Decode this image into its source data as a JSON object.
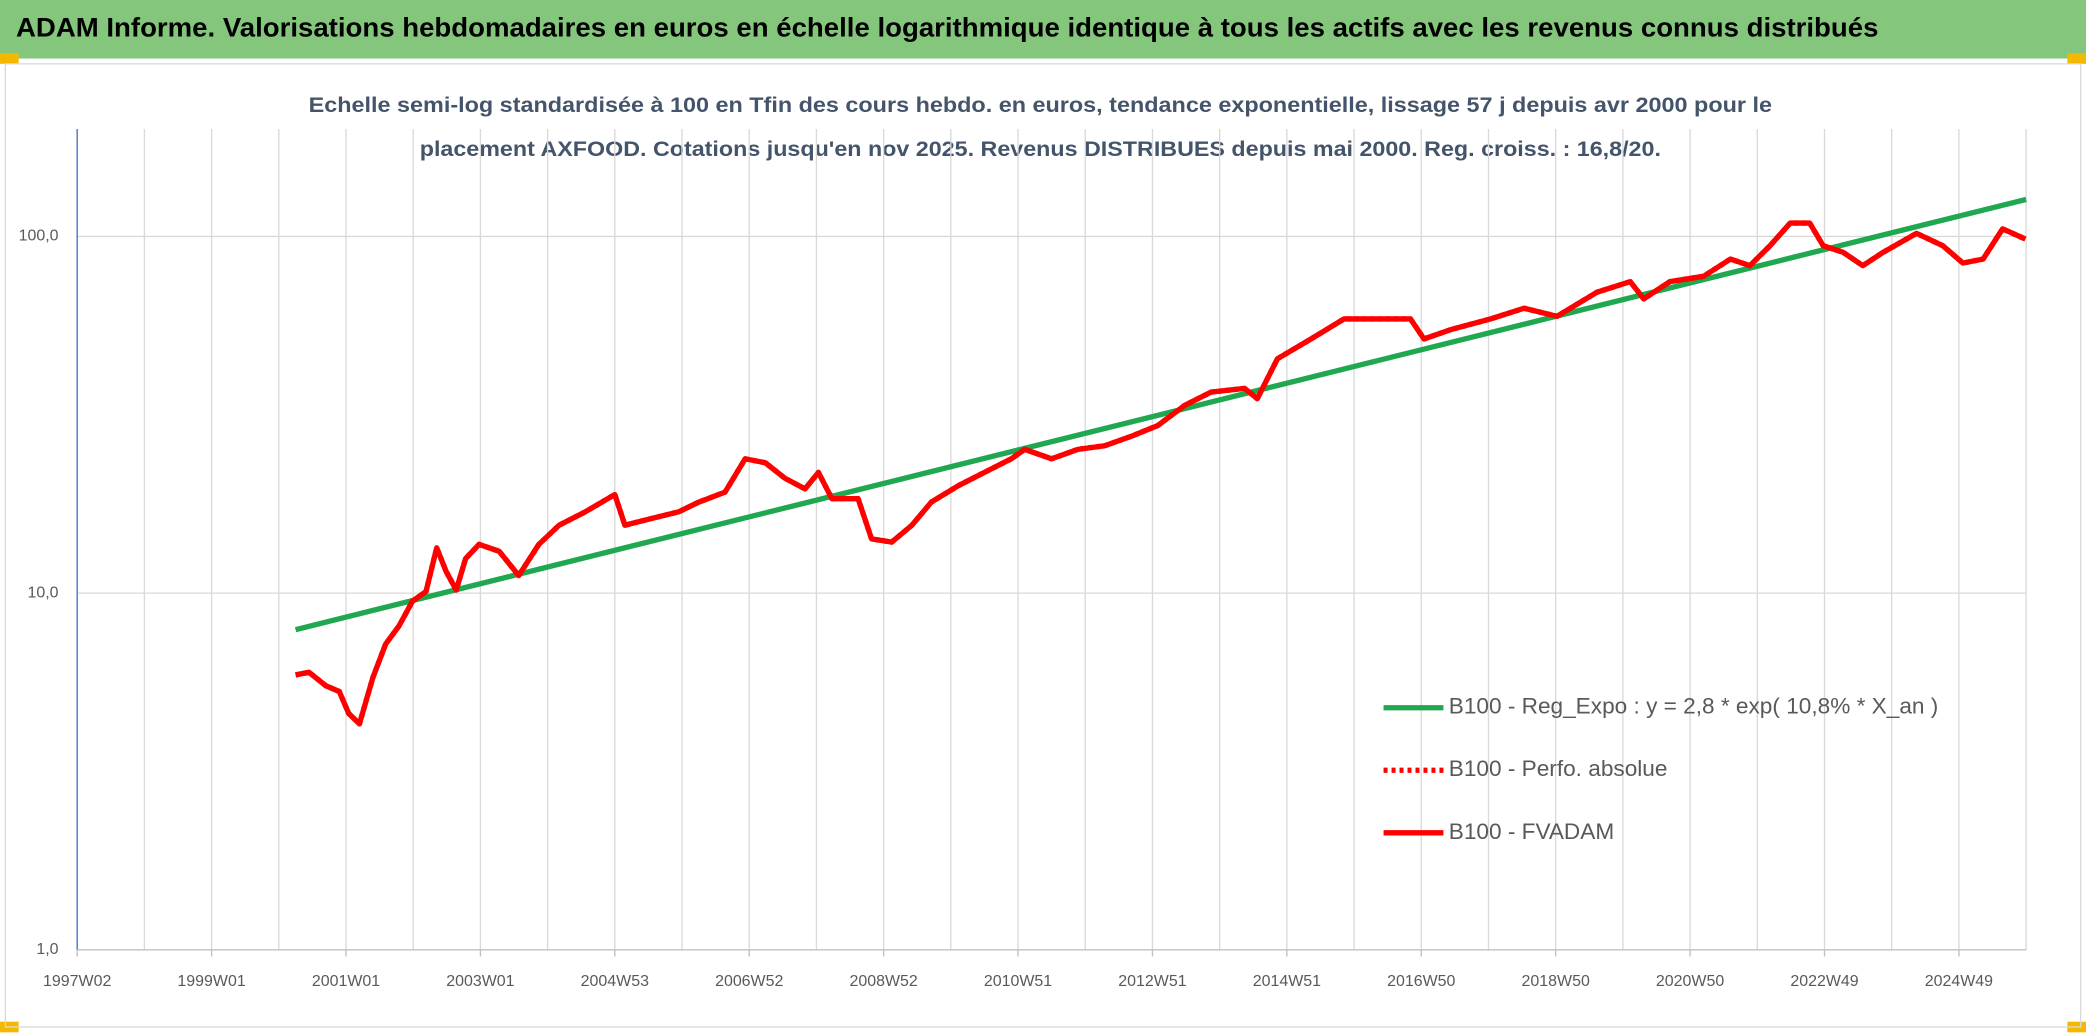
{
  "page_title": "ADAM Informe. Valorisations hebdomadaires en euros en échelle logarithmique identique à tous les actifs avec les revenus connus distribués",
  "chart_data": {
    "type": "line",
    "subtitle": [
      "Echelle semi-log standardisée à 100 en Tfin des cours hebdo. en euros, tendance exponentielle, lissage 57 j depuis avr 2000 pour le",
      "placement AXFOOD. Cotations jusqu'en nov 2025. Revenus DISTRIBUES depuis mai 2000. Reg. croiss. : 16,8/20."
    ],
    "log_y": true,
    "grid": true,
    "x_grid_step": 1,
    "legend": "lower right",
    "xlim": [
      1997,
      2026
    ],
    "xticks": [
      {
        "value": 1997,
        "label": "1997W02"
      },
      {
        "value": 1999,
        "label": "1999W01"
      },
      {
        "value": 2001,
        "label": "2001W01"
      },
      {
        "value": 2003,
        "label": "2003W01"
      },
      {
        "value": 2005,
        "label": "2004W53"
      },
      {
        "value": 2007,
        "label": "2006W52"
      },
      {
        "value": 2009,
        "label": "2008W52"
      },
      {
        "value": 2011,
        "label": "2010W51"
      },
      {
        "value": 2013,
        "label": "2012W51"
      },
      {
        "value": 2015,
        "label": "2014W51"
      },
      {
        "value": 2017,
        "label": "2016W50"
      },
      {
        "value": 2019,
        "label": "2018W50"
      },
      {
        "value": 2021,
        "label": "2020W50"
      },
      {
        "value": 2023,
        "label": "2022W49"
      },
      {
        "value": 2025,
        "label": "2024W49"
      }
    ],
    "ylim": [
      1,
      200
    ],
    "yticks": [
      {
        "value": 1,
        "label": "1,0"
      },
      {
        "value": 10,
        "label": "10,0"
      },
      {
        "value": 100,
        "label": "100,0"
      }
    ],
    "series": [
      {
        "name": "B100 - Reg_Expo : y = 2,8 * exp( 10,8% *  X_an )",
        "color": "#1fa84f",
        "style": "solid",
        "x": [
          2000.25,
          2026
        ],
        "values": [
          7.9,
          127
        ]
      },
      {
        "name": "B100 - Perfo. absolue",
        "color": "#ff0000",
        "style": "dotted",
        "x": [
          2000.25,
          2000.45,
          2000.7,
          2000.9,
          2001.04,
          2001.2,
          2001.4,
          2001.59,
          2001.79,
          2001.99,
          2002.19,
          2002.35,
          2002.49,
          2002.64,
          2002.78,
          2002.98,
          2003.28,
          2003.57,
          2003.87,
          2004.17,
          2004.56,
          2005.0,
          2005.15,
          2005.55,
          2005.95,
          2006.25,
          2006.64,
          2006.94,
          2007.24,
          2007.53,
          2007.83,
          2008.03,
          2008.23,
          2008.62,
          2008.82,
          2009.12,
          2009.42,
          2009.71,
          2010.11,
          2010.5,
          2010.9,
          2011.1,
          2011.5,
          2011.89,
          2012.29,
          2012.68,
          2013.08,
          2013.48,
          2013.87,
          2014.37,
          2014.56,
          2014.86,
          2015.36,
          2015.85,
          2016.45,
          2016.84,
          2017.04,
          2017.44,
          2018.03,
          2018.53,
          2019.02,
          2019.61,
          2020.11,
          2020.31,
          2020.7,
          2021.2,
          2021.6,
          2021.89,
          2022.19,
          2022.49,
          2022.78,
          2022.98,
          2023.28,
          2023.57,
          2023.87,
          2024.37,
          2024.76,
          2025.06,
          2025.36,
          2025.65,
          2025.99
        ],
        "values": [
          5.9,
          6.0,
          5.5,
          5.3,
          4.6,
          4.3,
          5.8,
          7.2,
          8.1,
          9.5,
          10.1,
          13.4,
          11.5,
          10.2,
          12.5,
          13.7,
          13.1,
          11.2,
          13.7,
          15.5,
          16.9,
          18.9,
          15.5,
          16.2,
          16.9,
          18.0,
          19.2,
          23.8,
          23.2,
          21.0,
          19.6,
          21.8,
          18.4,
          18.4,
          14.2,
          13.9,
          15.5,
          18.0,
          20.0,
          21.8,
          23.8,
          25.3,
          23.8,
          25.3,
          25.9,
          27.5,
          29.5,
          33.6,
          36.6,
          37.5,
          35.1,
          45.4,
          51.6,
          58.7,
          58.7,
          58.7,
          51.6,
          54.8,
          58.7,
          62.9,
          59.7,
          69.7,
          74.7,
          66.8,
          74.7,
          77.3,
          86.4,
          82.8,
          94.2,
          109,
          109,
          94.2,
          90.2,
          82.8,
          90.2,
          102,
          94.2,
          84.2,
          86.4,
          105,
          98.3
        ]
      },
      {
        "name": "B100 - FVADAM",
        "color": "#ff0000",
        "style": "solid",
        "x": [
          2000.25,
          2000.45,
          2000.7,
          2000.9,
          2001.04,
          2001.2,
          2001.4,
          2001.59,
          2001.79,
          2001.99,
          2002.19,
          2002.35,
          2002.49,
          2002.64,
          2002.78,
          2002.98,
          2003.28,
          2003.57,
          2003.87,
          2004.17,
          2004.56,
          2005.0,
          2005.15,
          2005.55,
          2005.95,
          2006.25,
          2006.64,
          2006.94,
          2007.24,
          2007.53,
          2007.83,
          2008.03,
          2008.23,
          2008.62,
          2008.82,
          2009.12,
          2009.42,
          2009.71,
          2010.11,
          2010.5,
          2010.9,
          2011.1,
          2011.5,
          2011.89,
          2012.29,
          2012.68,
          2013.08,
          2013.48,
          2013.87,
          2014.37,
          2014.56,
          2014.86,
          2015.36,
          2015.85,
          2016.45,
          2016.84,
          2017.04,
          2017.44,
          2018.03,
          2018.53,
          2019.02,
          2019.61,
          2020.11,
          2020.31,
          2020.7,
          2021.2,
          2021.6,
          2021.89,
          2022.19,
          2022.49,
          2022.78,
          2022.98,
          2023.28,
          2023.57,
          2023.87,
          2024.37,
          2024.76,
          2025.06,
          2025.36,
          2025.65,
          2025.99
        ],
        "values": [
          5.9,
          6.0,
          5.5,
          5.3,
          4.6,
          4.3,
          5.8,
          7.2,
          8.1,
          9.5,
          10.1,
          13.4,
          11.5,
          10.2,
          12.5,
          13.7,
          13.1,
          11.2,
          13.7,
          15.5,
          16.9,
          18.9,
          15.5,
          16.2,
          16.9,
          18.0,
          19.2,
          23.8,
          23.2,
          21.0,
          19.6,
          21.8,
          18.4,
          18.4,
          14.2,
          13.9,
          15.5,
          18.0,
          20.0,
          21.8,
          23.8,
          25.3,
          23.8,
          25.3,
          25.9,
          27.5,
          29.5,
          33.6,
          36.6,
          37.5,
          35.1,
          45.4,
          51.6,
          58.7,
          58.7,
          58.7,
          51.6,
          54.8,
          58.7,
          62.9,
          59.7,
          69.7,
          74.7,
          66.8,
          74.7,
          77.3,
          86.4,
          82.8,
          94.2,
          109,
          109,
          94.2,
          90.2,
          82.8,
          90.2,
          102,
          94.2,
          84.2,
          86.4,
          105,
          98.3
        ]
      }
    ]
  }
}
